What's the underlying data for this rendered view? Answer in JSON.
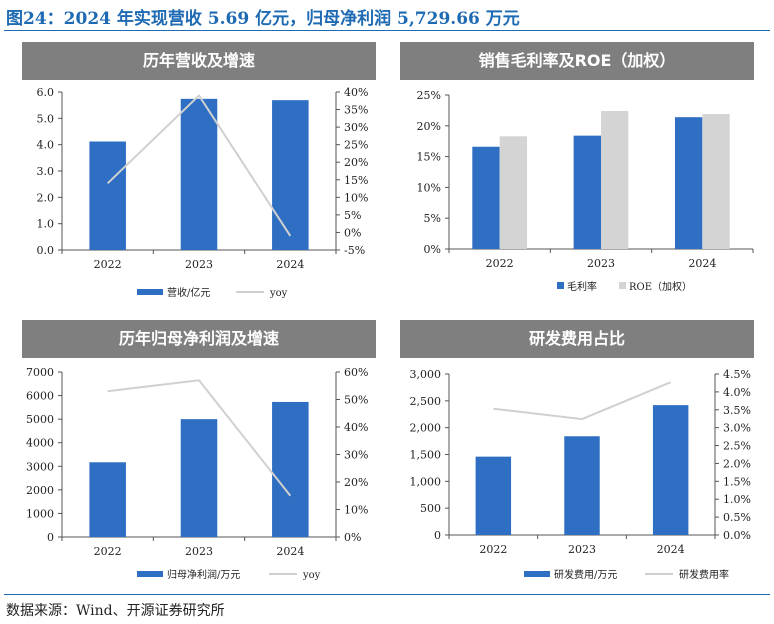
{
  "title": "图24：2024 年实现营收 5.69 亿元，归母净利润 5,729.66 万元",
  "source": "数据来源：Wind、开源证券研究所",
  "colors": {
    "bar": "#2e6fc4",
    "bar2": "#d4d4d4",
    "line": "#d0d0d0",
    "banner": "#7f7f7f",
    "title": "#1e6ab3",
    "axis": "#555555"
  },
  "chart_data": [
    {
      "type": "bar",
      "title": "历年营收及增速",
      "categories": [
        "2022",
        "2023",
        "2024"
      ],
      "series": [
        {
          "name": "营收/亿元",
          "type": "bar",
          "axis": "left",
          "values": [
            4.12,
            5.74,
            5.69
          ]
        },
        {
          "name": "yoy",
          "type": "line",
          "axis": "right",
          "values": [
            0.14,
            0.39,
            -0.01
          ]
        }
      ],
      "ylim": [
        0,
        6
      ],
      "yticks": [
        "0.0",
        "1.0",
        "2.0",
        "3.0",
        "4.0",
        "5.0",
        "6.0"
      ],
      "y2lim": [
        -0.05,
        0.4
      ],
      "y2ticks": [
        "-5%",
        "0%",
        "5%",
        "10%",
        "15%",
        "20%",
        "25%",
        "30%",
        "35%",
        "40%"
      ],
      "legend": "bottom"
    },
    {
      "type": "bar",
      "title": "销售毛利率及ROE（加权）",
      "categories": [
        "2022",
        "2023",
        "2024"
      ],
      "series": [
        {
          "name": "毛利率",
          "values": [
            0.166,
            0.184,
            0.214
          ]
        },
        {
          "name": "ROE（加权）",
          "values": [
            0.183,
            0.224,
            0.219
          ]
        }
      ],
      "ylim": [
        0,
        0.25
      ],
      "yticks": [
        "0%",
        "5%",
        "10%",
        "15%",
        "20%",
        "25%"
      ],
      "legend": "bottom"
    },
    {
      "type": "bar",
      "title": "历年归母净利润及增速",
      "categories": [
        "2022",
        "2023",
        "2024"
      ],
      "series": [
        {
          "name": "归母净利润/万元",
          "type": "bar",
          "axis": "left",
          "values": [
            3170,
            5000,
            5730
          ]
        },
        {
          "name": "yoy",
          "type": "line",
          "axis": "right",
          "values": [
            0.53,
            0.57,
            0.15
          ]
        }
      ],
      "ylim": [
        0,
        7000
      ],
      "yticks": [
        "0",
        "1000",
        "2000",
        "3000",
        "4000",
        "5000",
        "6000",
        "7000"
      ],
      "y2lim": [
        0,
        0.6
      ],
      "y2ticks": [
        "0%",
        "10%",
        "20%",
        "30%",
        "40%",
        "50%",
        "60%"
      ],
      "legend": "bottom"
    },
    {
      "type": "bar",
      "title": "研发费用占比",
      "categories": [
        "2022",
        "2023",
        "2024"
      ],
      "series": [
        {
          "name": "研发费用/万元",
          "type": "bar",
          "axis": "left",
          "values": [
            1460,
            1840,
            2420
          ]
        },
        {
          "name": "研发费用率",
          "type": "line",
          "axis": "right",
          "values": [
            0.0353,
            0.0324,
            0.0427
          ]
        }
      ],
      "ylim": [
        0,
        3000
      ],
      "yticks": [
        "0",
        "500",
        "1,000",
        "1,500",
        "2,000",
        "2,500",
        "3,000"
      ],
      "y2lim": [
        0,
        0.045
      ],
      "y2ticks": [
        "0.0%",
        "0.5%",
        "1.0%",
        "1.5%",
        "2.0%",
        "2.5%",
        "3.0%",
        "3.5%",
        "4.0%",
        "4.5%"
      ],
      "legend": "bottom"
    }
  ]
}
